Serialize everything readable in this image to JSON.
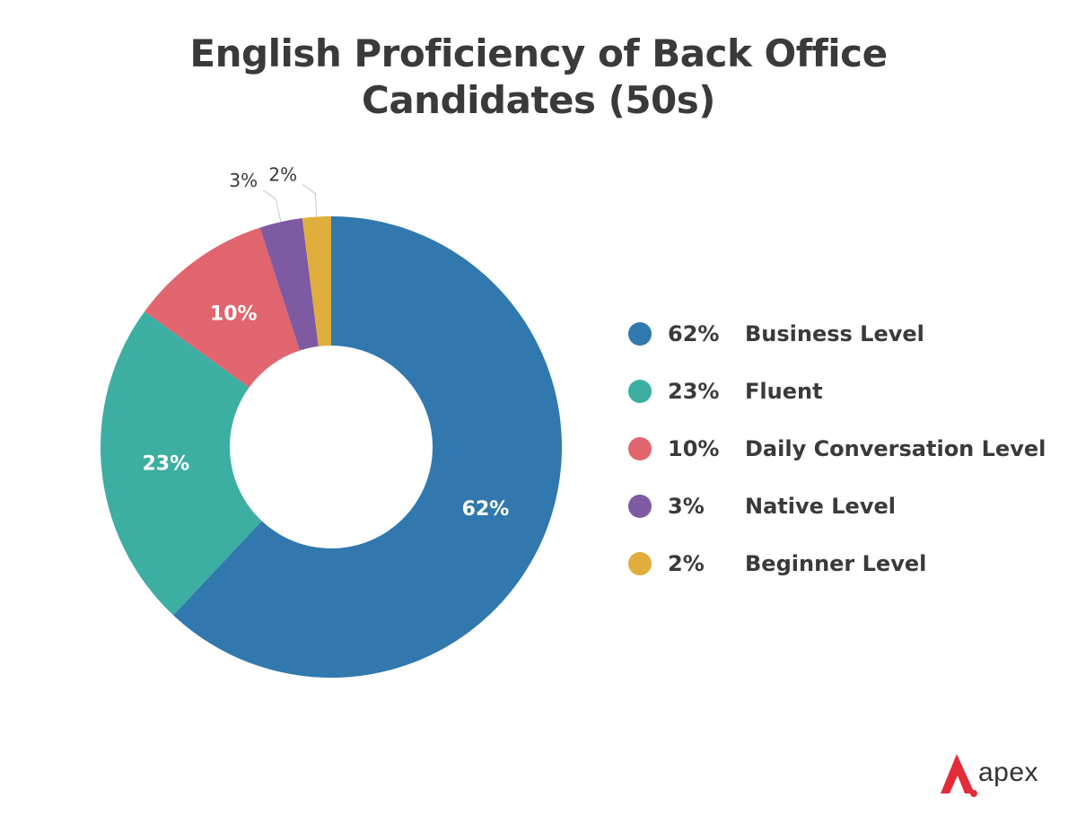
{
  "chart_data": {
    "type": "pie",
    "title": "English Proficiency of Back Office Candidates (50s)",
    "title_lines": [
      "English Proficiency of Back Office",
      "Candidates (50s)"
    ],
    "slices": [
      {
        "label": "Beginner Level",
        "value": 2,
        "pct_label": "2%",
        "color": "#e0ae3c"
      },
      {
        "label": "Native Level",
        "value": 3,
        "pct_label": "3%",
        "color": "#7e5aa3"
      },
      {
        "label": "Daily Conversation Level",
        "value": 10,
        "pct_label": "10%",
        "color": "#e0656f"
      },
      {
        "label": "Fluent",
        "value": 23,
        "pct_label": "23%",
        "color": "#3caea2"
      },
      {
        "label": "Business Level",
        "value": 62,
        "pct_label": "62%",
        "color": "#3078ad"
      }
    ],
    "legend_order": [
      "Business Level",
      "Fluent",
      "Daily Conversation Level",
      "Native Level",
      "Beginner Level"
    ],
    "legend_position": "right",
    "donut": true
  },
  "legend": [
    {
      "pct": "62%",
      "label": "Business Level",
      "color": "#3078ad"
    },
    {
      "pct": "23%",
      "label": "Fluent",
      "color": "#3caea2"
    },
    {
      "pct": "10%",
      "label": "Daily Conversation Level",
      "color": "#e0656f"
    },
    {
      "pct": "3%",
      "label": "Native Level",
      "color": "#7e5aa3"
    },
    {
      "pct": "2%",
      "label": "Beginner Level",
      "color": "#e0ae3c"
    }
  ],
  "logo": {
    "text": "apex",
    "mark_color": "#e32b3a"
  }
}
